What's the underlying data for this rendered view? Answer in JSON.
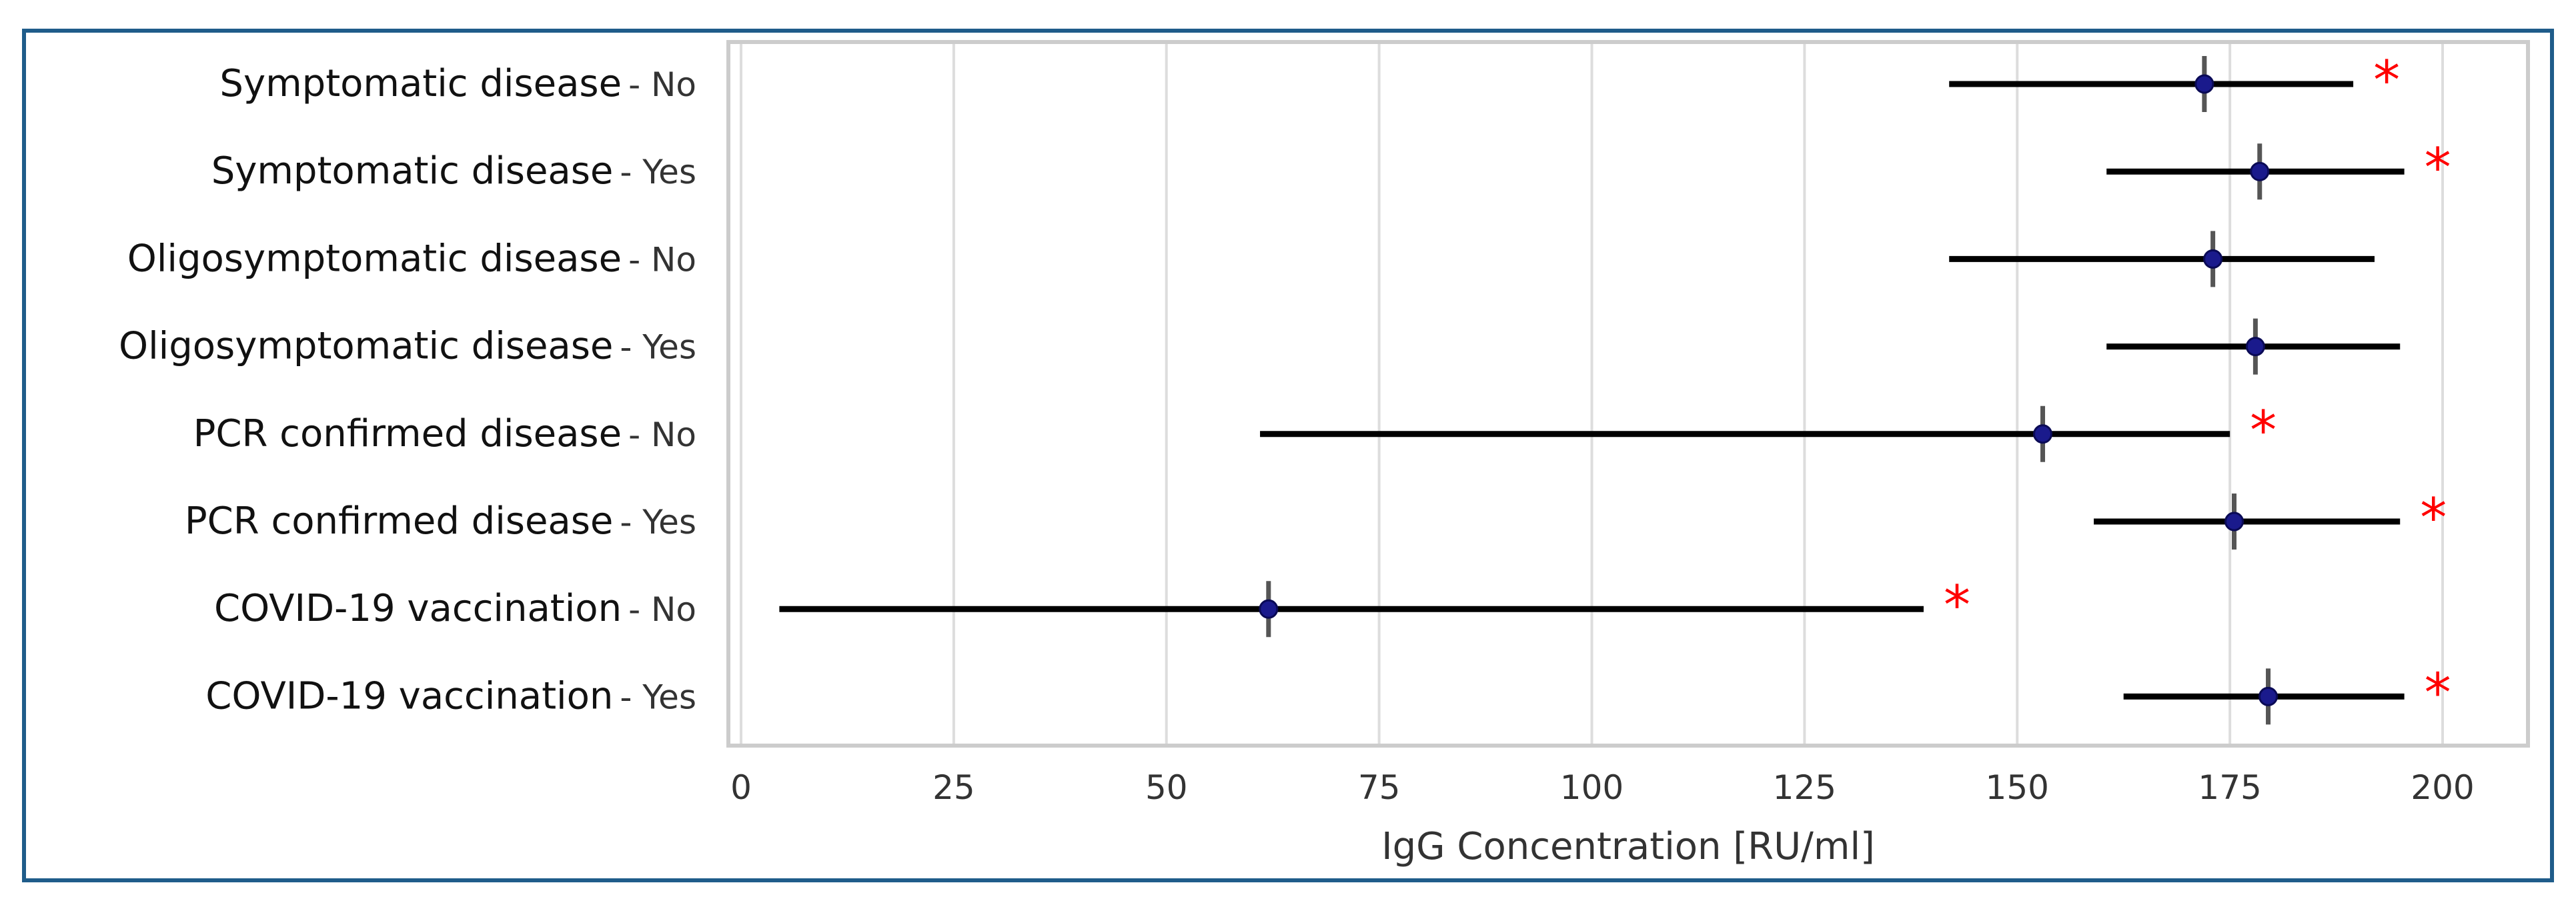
{
  "chart_data": {
    "type": "forest",
    "xlabel": "IgG Concentration [RU/ml]",
    "xlim": [
      -5,
      202
    ],
    "xticks": [
      0,
      25,
      50,
      75,
      100,
      125,
      150,
      175,
      200
    ],
    "grid": "vertical",
    "rows": [
      {
        "group": "Symptomatic disease",
        "level": "- No",
        "estimate": 172,
        "ci_low": 142,
        "ci_high": 189.5,
        "significant": true
      },
      {
        "group": "Symptomatic disease",
        "level": "- Yes",
        "estimate": 178.5,
        "ci_low": 160.5,
        "ci_high": 195.5,
        "significant": true
      },
      {
        "group": "Oligosymptomatic disease",
        "level": "- No",
        "estimate": 173,
        "ci_low": 142,
        "ci_high": 192,
        "significant": false
      },
      {
        "group": "Oligosymptomatic disease",
        "level": "- Yes",
        "estimate": 178,
        "ci_low": 160.5,
        "ci_high": 195,
        "significant": false
      },
      {
        "group": "PCR confirmed disease",
        "level": "- No",
        "estimate": 153,
        "ci_low": 61,
        "ci_high": 175,
        "significant": true
      },
      {
        "group": "PCR confirmed disease",
        "level": "- Yes",
        "estimate": 175.5,
        "ci_low": 159,
        "ci_high": 195,
        "significant": true
      },
      {
        "group": "COVID-19 vaccination",
        "level": "- No",
        "estimate": 62,
        "ci_low": 4.5,
        "ci_high": 139,
        "significant": true
      },
      {
        "group": "COVID-19 vaccination",
        "level": "- Yes",
        "estimate": 179.5,
        "ci_low": 162.5,
        "ci_high": 195.5,
        "significant": true
      }
    ],
    "significance_marker": "*",
    "colors": {
      "ci_line": "#000000",
      "point": "#1a1a8c",
      "tick_mark": "#555555",
      "significance": "#ff0000",
      "grid": "#dddddd",
      "axes": "#cccccc",
      "frame": "#1f5c8a"
    }
  }
}
